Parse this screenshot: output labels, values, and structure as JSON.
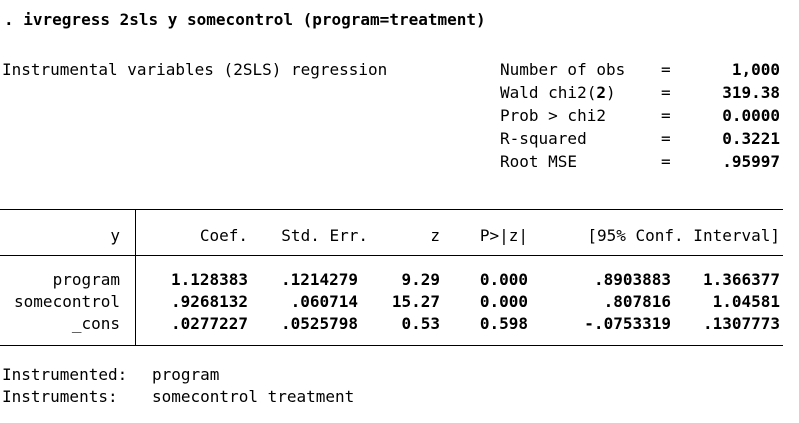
{
  "command": ". ivregress 2sls y somecontrol (program=treatment)",
  "model_title": "Instrumental variables (2SLS) regression",
  "stats": [
    {
      "label": "Number of obs",
      "eq": "=",
      "value": "1,000"
    },
    {
      "label": "Wald chi2(",
      "label_bold": "2",
      "label_end": ")",
      "eq": "=",
      "value": "319.38"
    },
    {
      "label": "Prob > chi2",
      "eq": "=",
      "value": "0.0000"
    },
    {
      "label": "R-squared",
      "eq": "=",
      "value": "0.3221"
    },
    {
      "label": "Root MSE",
      "eq": "=",
      "value": ".95997"
    }
  ],
  "table": {
    "headers": {
      "var": "y",
      "coef": "Coef.",
      "se": "Std. Err.",
      "z": "z",
      "p": "P>|z|",
      "ci": "[95% Conf. Interval]"
    },
    "rows": [
      {
        "var": "program",
        "coef": "1.128383",
        "se": ".1214279",
        "z": "9.29",
        "p": "0.000",
        "lo": ".8903883",
        "hi": "1.366377"
      },
      {
        "var": "somecontrol",
        "coef": ".9268132",
        "se": ".060714",
        "z": "15.27",
        "p": "0.000",
        "lo": ".807816",
        "hi": "1.04581"
      },
      {
        "var": "_cons",
        "coef": ".0277227",
        "se": ".0525798",
        "z": "0.53",
        "p": "0.598",
        "lo": "-.0753319",
        "hi": ".1307773"
      }
    ]
  },
  "footer": {
    "instrumented_label": "Instrumented:",
    "instrumented_value": "program",
    "instruments_label": "Instruments:",
    "instruments_value": "somecontrol treatment"
  }
}
